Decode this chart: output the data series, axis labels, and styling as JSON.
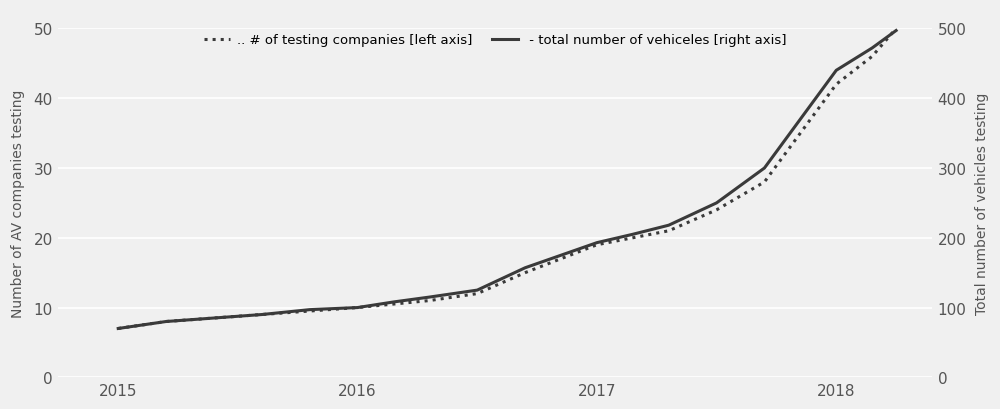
{
  "companies_x": [
    2015.0,
    2015.2,
    2015.4,
    2015.6,
    2015.8,
    2016.0,
    2016.15,
    2016.3,
    2016.5,
    2016.7,
    2017.0,
    2017.15,
    2017.3,
    2017.5,
    2017.7,
    2018.0,
    2018.15,
    2018.25
  ],
  "companies_y": [
    7,
    8,
    8.5,
    9,
    9.5,
    10,
    10.5,
    11,
    12,
    15,
    19,
    20,
    21,
    24,
    28,
    42,
    46,
    50
  ],
  "vehicles_x": [
    2015.0,
    2015.2,
    2015.4,
    2015.6,
    2015.8,
    2016.0,
    2016.15,
    2016.3,
    2016.5,
    2016.7,
    2017.0,
    2017.15,
    2017.3,
    2017.5,
    2017.7,
    2018.0,
    2018.15,
    2018.25
  ],
  "vehicles_y": [
    70,
    80,
    85,
    90,
    97,
    100,
    108,
    115,
    125,
    157,
    193,
    205,
    218,
    250,
    300,
    440,
    472,
    497
  ],
  "left_ylim": [
    0,
    50
  ],
  "right_ylim": [
    0,
    500
  ],
  "left_yticks": [
    0,
    10,
    20,
    30,
    40,
    50
  ],
  "right_yticks": [
    0,
    100,
    200,
    300,
    400,
    500
  ],
  "xlim": [
    2014.75,
    2018.4
  ],
  "xticks": [
    2015,
    2016,
    2017,
    2018
  ],
  "left_ylabel": "Number of AV companies testing",
  "right_ylabel": "Total number of vehicles testing",
  "legend_label_dotted": ".. # of testing companies [left axis]",
  "legend_label_solid": " - total number of vehiceles [right axis]",
  "bg_color": "#f0f0f0",
  "line_color": "#3a3a3a",
  "grid_color": "#ffffff",
  "fig_width": 10.0,
  "fig_height": 4.1
}
